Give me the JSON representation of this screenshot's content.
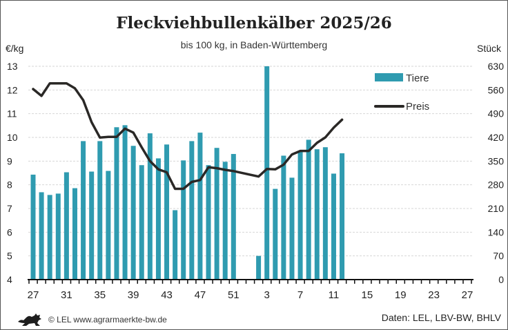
{
  "chart_data": {
    "type": "bar",
    "title": "Fleckviehbullenkälber 2025/26",
    "subtitle": "bis 100 kg, in Baden-Württemberg",
    "ylabel_left": "€/kg",
    "ylabel_right": "Stück",
    "ylim_left": [
      4,
      13
    ],
    "ylim_right": [
      0,
      630
    ],
    "yticks_left": [
      "4",
      "5",
      "6",
      "7",
      "8",
      "9",
      "10",
      "11",
      "12",
      "13"
    ],
    "yticks_right": [
      "0",
      "70",
      "140",
      "210",
      "280",
      "350",
      "420",
      "490",
      "560",
      "630"
    ],
    "xtick_labels": [
      "27",
      "31",
      "35",
      "39",
      "43",
      "47",
      "51",
      "3",
      "7",
      "11",
      "15",
      "19",
      "23",
      "27"
    ],
    "weeks": [
      27,
      28,
      29,
      30,
      31,
      32,
      33,
      34,
      35,
      36,
      37,
      38,
      39,
      40,
      41,
      42,
      43,
      44,
      45,
      46,
      47,
      48,
      49,
      50,
      51,
      52,
      1,
      2,
      3,
      4,
      5,
      6,
      7,
      8,
      9,
      10,
      11,
      12,
      13,
      14,
      15,
      16,
      17,
      18,
      19,
      20,
      21,
      22,
      23,
      24,
      25,
      26,
      27
    ],
    "grid": true,
    "legend_position": "top-right",
    "series": [
      {
        "name": "Tiere",
        "type": "bar",
        "axis": "right",
        "color": "#2f9bb0",
        "values": [
          310,
          258,
          250,
          254,
          317,
          270,
          409,
          319,
          409,
          321,
          450,
          456,
          395,
          338,
          432,
          358,
          399,
          205,
          352,
          409,
          434,
          338,
          389,
          348,
          371,
          null,
          null,
          70,
          630,
          268,
          366,
          301,
          377,
          413,
          385,
          391,
          313,
          373,
          null,
          null,
          null,
          null,
          null,
          null,
          null,
          null,
          null,
          null,
          null,
          null,
          null,
          null,
          null
        ]
      },
      {
        "name": "Preis",
        "type": "line",
        "axis": "left",
        "color": "#2a2826",
        "values": [
          12.04,
          11.75,
          12.28,
          12.28,
          12.28,
          12.07,
          11.57,
          10.64,
          9.99,
          10.02,
          10.02,
          10.37,
          10.2,
          9.58,
          9.0,
          8.65,
          8.53,
          7.83,
          7.83,
          8.12,
          8.2,
          8.74,
          8.7,
          8.63,
          8.58,
          null,
          null,
          8.35,
          8.67,
          8.65,
          8.85,
          9.28,
          9.43,
          9.43,
          9.77,
          10.0,
          10.41,
          10.75,
          null,
          null,
          null,
          null,
          null,
          null,
          null,
          null,
          null,
          null,
          null,
          null,
          null,
          null,
          null
        ]
      }
    ]
  },
  "footer": {
    "copyright": "© LEL www.agrarmaerkte-bw.de",
    "source": "Daten: LEL, LBV-BW, BHLV",
    "logo": "Baden-Württemberg lion"
  }
}
